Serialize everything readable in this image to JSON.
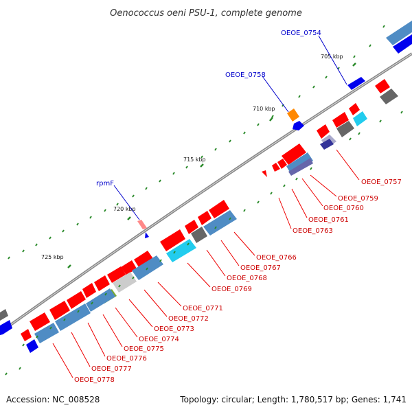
{
  "title": "Oenococcus oeni PSU-1, complete genome",
  "footer": {
    "accession": "Accession: NC_008528",
    "summary": "Topology: circular; Length: 1,780,517 bp; Genes: 1,741"
  },
  "ticks": [
    "705 kbp",
    "710 kbp",
    "715 kbp",
    "720 kbp",
    "725 kbp"
  ],
  "forward_labels": [
    "OEOE_0754",
    "OEOE_0758",
    "rpmF"
  ],
  "reverse_labels": [
    "OEOE_0757",
    "OEOE_0759",
    "OEOE_0760",
    "OEOE_0761",
    "OEOE_0763",
    "OEOE_0766",
    "OEOE_0767",
    "OEOE_0768",
    "OEOE_0769",
    "OEOE_0771",
    "OEOE_0772",
    "OEOE_0773",
    "OEOE_0774",
    "OEOE_0775",
    "OEOE_0776",
    "OEOE_0777",
    "OEOE_0778"
  ],
  "colors": {
    "cds": "#ff0000",
    "forward_gene": "#0000ee",
    "cog_blue": "#4f8cc4",
    "cog_gray": "#666666",
    "cog_cyan": "#22ccee",
    "cog_orange": "#ff8800",
    "backbone": "#888888",
    "tick": "#2a8a2a"
  }
}
